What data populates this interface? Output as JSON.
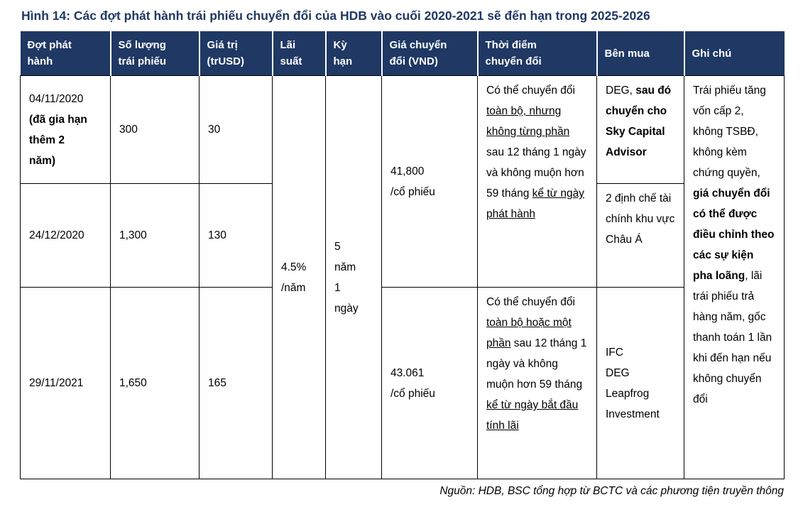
{
  "title": "Hình 14: Các đợt phát hành trái phiếu chuyển đổi của HDB vào cuối 2020-2021 sẽ đến hạn trong 2025-2026",
  "source_note": "Nguồn: HDB, BSC tổng hợp từ BCTC và các phương tiện truyền thông",
  "colors": {
    "header_navy": "#1f3864",
    "title_navy": "#1f3864",
    "border": "#000000",
    "text": "#000000",
    "background": "#ffffff"
  },
  "table": {
    "headers": [
      "Đợt phát\nhành",
      "Số lượng\ntrái phiếu",
      "Giá trị\n(trUSD)",
      "Lãi\nsuất",
      "Kỳ\nhạn",
      "Giá chuyển\nđổi (VND)",
      "Thời điểm\nchuyển đổi",
      "Bên mua",
      "Ghi chú"
    ],
    "rows": [
      {
        "date_rich": [
          {
            "t": "04/11/2020\n"
          },
          {
            "t": "(đã gia hạn\nthêm 2\nnăm)",
            "b": true
          }
        ],
        "quantity": "300",
        "value": "30",
        "buyer_rich": [
          {
            "t": "DEG, "
          },
          {
            "t": "sau đó chuyển cho Sky Capital Advisor",
            "b": true
          }
        ]
      },
      {
        "date": "24/12/2020",
        "quantity": "1,300",
        "value": "130",
        "buyer": "2 định chế tài chính khu vực Châu Á"
      },
      {
        "date": "29/11/2021",
        "quantity": "1,650",
        "value": "165",
        "buyer": "IFC\nDEG\nLeapfrog Investment"
      }
    ],
    "merged_cells": {
      "interest_rate": "4.5%\n/năm",
      "term": "5\nnăm\n1\nngày",
      "conversion_price_rows_1_2": "41,800\n/cổ phiếu",
      "conversion_price_row_3": "43.061\n/cổ phiếu",
      "conversion_time_rows_1_2": [
        {
          "t": "Có thể chuyển đổi "
        },
        {
          "t": "toàn bộ, nhưng không từng phần",
          "u": true
        },
        {
          "t": " sau 12 tháng 1 ngày và không muộn hơn 59 tháng "
        },
        {
          "t": "kể từ ngày phát hành",
          "u": true
        }
      ],
      "conversion_time_row_3": [
        {
          "t": "Có thể chuyển đổi "
        },
        {
          "t": "toàn bộ hoặc một phần",
          "u": true
        },
        {
          "t": " sau 12 tháng 1 ngày và không muộn hơn 59 tháng "
        },
        {
          "t": "kể từ ngày bắt đầu tính lãi",
          "u": true
        }
      ],
      "notes": [
        {
          "t": "Trái phiếu tăng vốn cấp 2, không TSBĐ, không kèm chứng quyền, "
        },
        {
          "t": "giá chuyển đổi có thể được điều chỉnh theo các sự kiện pha loãng",
          "b": true
        },
        {
          "t": ", lãi trái phiếu trả hàng năm, gốc thanh toán 1 lần khi đến hạn nếu không chuyển đổi"
        }
      ]
    }
  }
}
